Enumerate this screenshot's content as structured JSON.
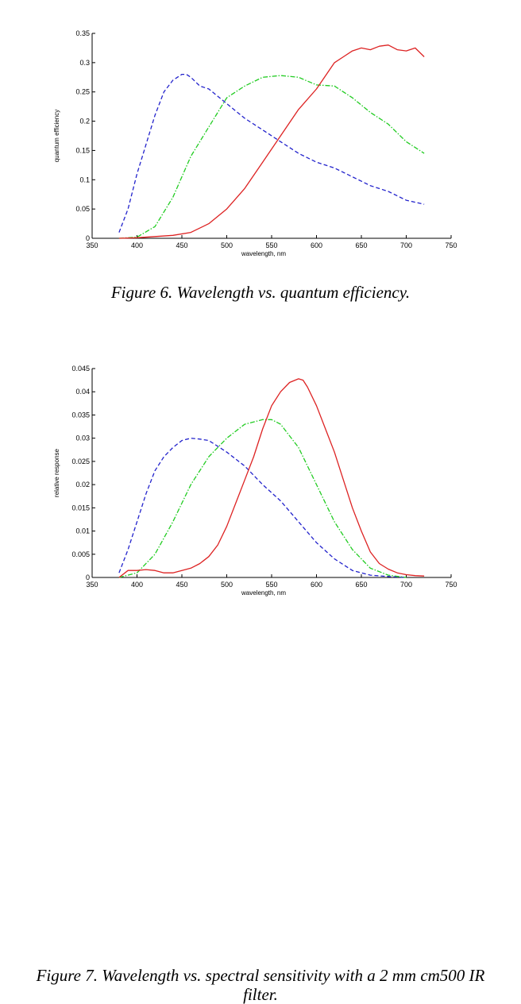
{
  "chart_data": [
    {
      "type": "line",
      "xlabel": "wavelength, nm",
      "ylabel": "quantum efficiency",
      "xlim": [
        350,
        750
      ],
      "ylim": [
        0,
        0.35
      ],
      "xticks": [
        350,
        400,
        450,
        500,
        550,
        600,
        650,
        700,
        750
      ],
      "xtick_labels": [
        "350",
        "400",
        "450",
        "500",
        "550",
        "600",
        "650",
        "700",
        "750"
      ],
      "yticks": [
        0,
        0.05,
        0.1,
        0.15,
        0.2,
        0.25,
        0.3,
        0.35
      ],
      "ytick_labels": [
        "0",
        "0.05",
        "0.1",
        "0.15",
        "0.2",
        "0.25",
        "0.3",
        "0.35"
      ],
      "grid": false,
      "series": [
        {
          "color": "#2222cc",
          "dash": "dashed",
          "x": [
            380,
            390,
            400,
            410,
            420,
            430,
            440,
            450,
            455,
            460,
            470,
            480,
            500,
            520,
            540,
            560,
            580,
            600,
            620,
            640,
            660,
            680,
            700,
            720
          ],
          "y": [
            0.01,
            0.05,
            0.11,
            0.16,
            0.21,
            0.25,
            0.27,
            0.28,
            0.28,
            0.275,
            0.26,
            0.255,
            0.23,
            0.205,
            0.185,
            0.165,
            0.145,
            0.13,
            0.12,
            0.105,
            0.09,
            0.08,
            0.065,
            0.058
          ]
        },
        {
          "color": "#22cc22",
          "dash": "dashdot",
          "x": [
            380,
            400,
            420,
            440,
            460,
            480,
            500,
            520,
            540,
            560,
            580,
            600,
            620,
            640,
            660,
            680,
            700,
            710,
            720
          ],
          "y": [
            0.0,
            0.002,
            0.02,
            0.07,
            0.14,
            0.19,
            0.24,
            0.26,
            0.275,
            0.278,
            0.275,
            0.262,
            0.26,
            0.24,
            0.215,
            0.195,
            0.165,
            0.155,
            0.145
          ]
        },
        {
          "color": "#dd2222",
          "dash": "solid",
          "x": [
            380,
            400,
            420,
            440,
            460,
            480,
            500,
            520,
            540,
            560,
            580,
            600,
            620,
            630,
            640,
            650,
            660,
            670,
            680,
            690,
            700,
            710,
            720
          ],
          "y": [
            0.0,
            0.001,
            0.003,
            0.005,
            0.01,
            0.025,
            0.05,
            0.085,
            0.13,
            0.175,
            0.22,
            0.255,
            0.3,
            0.31,
            0.32,
            0.325,
            0.322,
            0.328,
            0.33,
            0.322,
            0.32,
            0.325,
            0.31
          ]
        }
      ]
    },
    {
      "type": "line",
      "xlabel": "wavelength, nm",
      "ylabel": "relative response",
      "xlim": [
        350,
        750
      ],
      "ylim": [
        0,
        0.045
      ],
      "xticks": [
        350,
        400,
        450,
        500,
        550,
        600,
        650,
        700,
        750
      ],
      "xtick_labels": [
        "350",
        "400",
        "450",
        "500",
        "550",
        "600",
        "650",
        "700",
        "750"
      ],
      "yticks": [
        0,
        0.005,
        0.01,
        0.015,
        0.02,
        0.025,
        0.03,
        0.035,
        0.04,
        0.045
      ],
      "ytick_labels": [
        "0",
        "0.005",
        "0.01",
        "0.015",
        "0.02",
        "0.025",
        "0.03",
        "0.035",
        "0.04",
        "0.045"
      ],
      "grid": false,
      "series": [
        {
          "color": "#2222cc",
          "dash": "dashed",
          "x": [
            380,
            390,
            400,
            410,
            420,
            430,
            440,
            450,
            460,
            470,
            480,
            500,
            520,
            540,
            560,
            580,
            600,
            620,
            640,
            660,
            680,
            700
          ],
          "y": [
            0.001,
            0.006,
            0.012,
            0.018,
            0.023,
            0.026,
            0.028,
            0.0295,
            0.03,
            0.0298,
            0.0295,
            0.027,
            0.024,
            0.02,
            0.0165,
            0.012,
            0.0075,
            0.004,
            0.0015,
            0.0005,
            0.0002,
            0.0
          ]
        },
        {
          "color": "#22cc22",
          "dash": "dashdot",
          "x": [
            380,
            400,
            420,
            440,
            460,
            480,
            500,
            520,
            540,
            550,
            560,
            580,
            600,
            620,
            640,
            660,
            680,
            700
          ],
          "y": [
            0.0,
            0.001,
            0.005,
            0.012,
            0.02,
            0.026,
            0.03,
            0.033,
            0.034,
            0.034,
            0.033,
            0.028,
            0.02,
            0.012,
            0.006,
            0.002,
            0.0005,
            0.0
          ]
        },
        {
          "color": "#dd2222",
          "dash": "solid",
          "x": [
            380,
            390,
            400,
            410,
            420,
            430,
            440,
            450,
            460,
            470,
            480,
            490,
            500,
            510,
            520,
            530,
            540,
            550,
            560,
            570,
            580,
            585,
            590,
            600,
            610,
            620,
            630,
            640,
            650,
            660,
            670,
            680,
            690,
            700,
            710,
            720
          ],
          "y": [
            0.0,
            0.0015,
            0.0015,
            0.0017,
            0.0015,
            0.001,
            0.001,
            0.0015,
            0.002,
            0.003,
            0.0045,
            0.007,
            0.011,
            0.016,
            0.021,
            0.026,
            0.032,
            0.037,
            0.04,
            0.042,
            0.0428,
            0.0425,
            0.041,
            0.037,
            0.032,
            0.027,
            0.021,
            0.015,
            0.01,
            0.0055,
            0.003,
            0.0018,
            0.001,
            0.0006,
            0.0004,
            0.0003
          ]
        }
      ]
    }
  ],
  "captions": {
    "fig6": "Figure 6. Wavelength vs. quantum efficiency.",
    "fig7": "Figure 7. Wavelength vs. spectral sensitivity with a 2 mm cm500 IR filter."
  }
}
